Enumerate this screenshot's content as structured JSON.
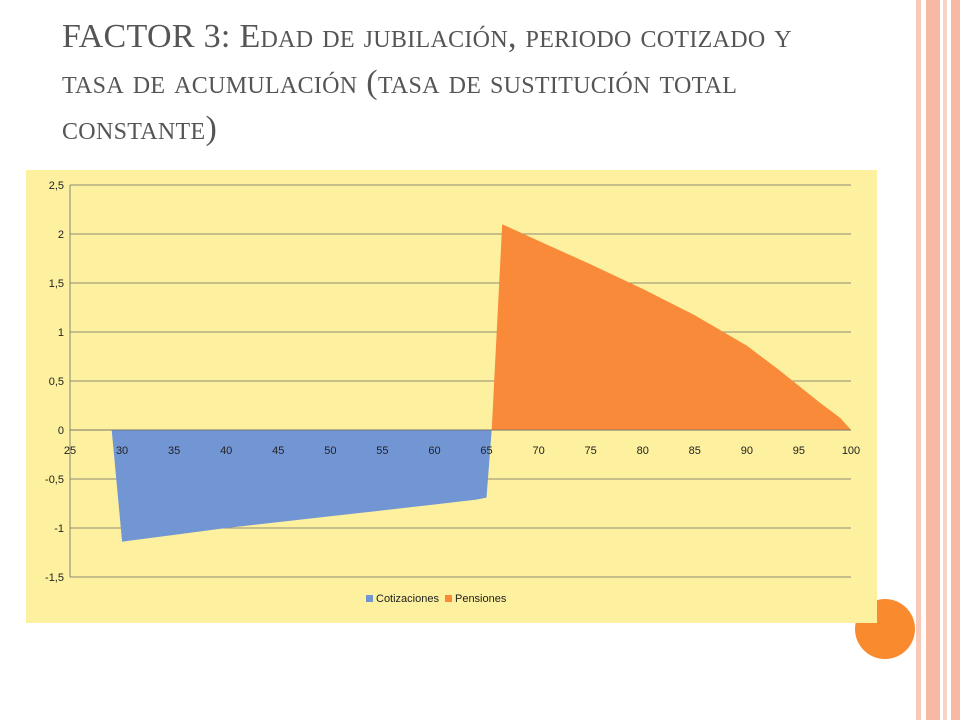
{
  "slide": {
    "title_first": "FACTOR 3: E",
    "title_rest": "dad de jubilación, periodo cotizado y tasa de acumulación (tasa de sustitución total constante)"
  },
  "colors": {
    "plot_bg": "#fdf09e",
    "cotizaciones": "#7296d4",
    "pensiones": "#f98a3a",
    "stripe": "#f7b9a3",
    "accent": "#f98a2e"
  },
  "chart_data": {
    "type": "area",
    "x_ticks": [
      "25",
      "30",
      "35",
      "40",
      "45",
      "50",
      "55",
      "60",
      "65",
      "70",
      "75",
      "80",
      "85",
      "90",
      "95",
      "100"
    ],
    "y_ticks": [
      "2,5",
      "2",
      "1,5",
      "1",
      "0,5",
      "0",
      "-0,5",
      "-1",
      "-1,5"
    ],
    "xlim": [
      25,
      100
    ],
    "ylim": [
      -1.5,
      2.5
    ],
    "grid": true,
    "legend_position": "bottom",
    "series": [
      {
        "name": "Cotizaciones",
        "points": [
          [
            29,
            0
          ],
          [
            30,
            -1.14
          ],
          [
            35,
            -1.07
          ],
          [
            40,
            -1.0
          ],
          [
            45,
            -0.94
          ],
          [
            50,
            -0.88
          ],
          [
            55,
            -0.82
          ],
          [
            60,
            -0.76
          ],
          [
            64,
            -0.71
          ],
          [
            65,
            -0.69
          ],
          [
            65.5,
            0
          ]
        ]
      },
      {
        "name": "Pensiones",
        "points": [
          [
            65.5,
            0
          ],
          [
            66.5,
            2.1
          ],
          [
            70,
            1.93
          ],
          [
            75,
            1.69
          ],
          [
            80,
            1.44
          ],
          [
            85,
            1.17
          ],
          [
            90,
            0.86
          ],
          [
            93,
            0.62
          ],
          [
            95,
            0.45
          ],
          [
            97,
            0.28
          ],
          [
            98,
            0.2
          ],
          [
            99,
            0.12
          ],
          [
            99.5,
            0.06
          ],
          [
            100,
            0
          ]
        ]
      }
    ]
  }
}
